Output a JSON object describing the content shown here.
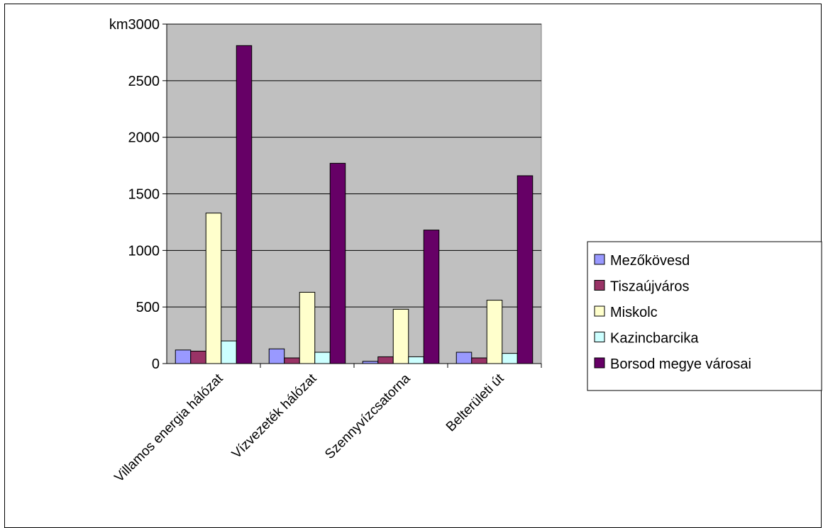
{
  "chart_data": {
    "type": "bar",
    "y_unit_label": "km",
    "categories": [
      "Villamos energia hálózat",
      "Vízvezeték hálózat",
      "Szennyvízcsatorna",
      "Belterületi út"
    ],
    "ylim": [
      0,
      3000
    ],
    "yticks": [
      0,
      500,
      1000,
      1500,
      2000,
      2500,
      3000
    ],
    "grid": true,
    "legend_position": "right",
    "series": [
      {
        "name": "Mezőkövesd",
        "color": "#9999ff",
        "values": [
          120,
          130,
          20,
          100
        ]
      },
      {
        "name": "Tiszaújváros",
        "color": "#993366",
        "values": [
          110,
          50,
          60,
          50
        ]
      },
      {
        "name": "Miskolc",
        "color": "#ffffcc",
        "values": [
          1330,
          630,
          480,
          560
        ]
      },
      {
        "name": "Kazincbarcika",
        "color": "#ccffff",
        "values": [
          200,
          100,
          60,
          90
        ]
      },
      {
        "name": "Borsod megye városai",
        "color": "#660066",
        "values": [
          2810,
          1770,
          1180,
          1660
        ]
      }
    ],
    "plot_background": "#c0c0c0"
  }
}
